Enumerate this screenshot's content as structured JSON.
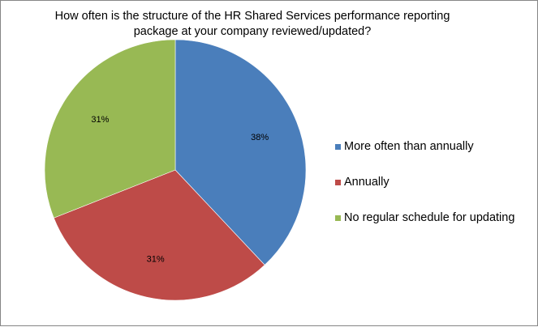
{
  "chart_data": {
    "type": "pie",
    "title_lines": [
      "How often is the structure of the HR Shared Services performance reporting",
      "package at your company reviewed/updated?"
    ],
    "categories": [
      "More often than annually",
      "Annually",
      "No regular schedule for updating"
    ],
    "values": [
      38,
      31,
      31
    ],
    "data_labels": [
      "38%",
      "31%",
      "31%"
    ],
    "colors": [
      "#4a7ebb",
      "#be4b48",
      "#98b954"
    ],
    "legend_position": "right",
    "start_angle": "12 o'clock",
    "direction": "clockwise"
  }
}
